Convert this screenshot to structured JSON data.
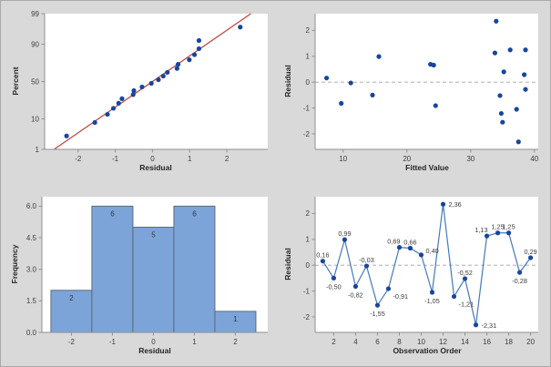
{
  "figure": {
    "background": "#d9d9d9",
    "border_color": "#a9a9a9",
    "plot_background": "#ffffff"
  },
  "colors": {
    "marker": "#17469e",
    "connect_line": "#4379bd",
    "fit_line": "#c0433c",
    "bar_fill": "#7da4d9",
    "bar_border": "#5a6b7e",
    "axis": "#8f8f8f",
    "tick_label": "#3d3d3d",
    "axis_title": "#262626",
    "zero_line": "#a3a3a3",
    "data_label": "#3a3a3a"
  },
  "chart_data": [
    {
      "name": "normal-probability-plot",
      "type": "scatter",
      "y_scale": "normal_percent",
      "xlabel": "Residual",
      "ylabel": "Percent",
      "xlim": [
        -2.9,
        3.1
      ],
      "xticks": {
        "values": [
          -2,
          -1,
          0,
          1,
          2
        ],
        "labels": [
          "-2",
          "-1",
          "0",
          "1",
          "2"
        ]
      },
      "yticks": {
        "values": [
          1,
          10,
          50,
          90,
          99
        ],
        "labels": [
          "1",
          "10",
          "50",
          "90",
          "99"
        ]
      },
      "fit_line": {
        "mean": 0,
        "sd": 1.137
      },
      "points": [
        {
          "x": -2.31,
          "percent": 3.1
        },
        {
          "x": -1.55,
          "percent": 8.0
        },
        {
          "x": -1.21,
          "percent": 13.0
        },
        {
          "x": -1.05,
          "percent": 17.9
        },
        {
          "x": -0.91,
          "percent": 22.8
        },
        {
          "x": -0.82,
          "percent": 27.8
        },
        {
          "x": -0.52,
          "percent": 32.7
        },
        {
          "x": -0.5,
          "percent": 37.7
        },
        {
          "x": -0.28,
          "percent": 42.6
        },
        {
          "x": -0.03,
          "percent": 47.5
        },
        {
          "x": 0.16,
          "percent": 52.5
        },
        {
          "x": 0.29,
          "percent": 57.4
        },
        {
          "x": 0.4,
          "percent": 62.3
        },
        {
          "x": 0.66,
          "percent": 67.3
        },
        {
          "x": 0.69,
          "percent": 72.2
        },
        {
          "x": 0.99,
          "percent": 77.2
        },
        {
          "x": 1.13,
          "percent": 82.1
        },
        {
          "x": 1.25,
          "percent": 87.0
        },
        {
          "x": 1.25,
          "percent": 92.0
        },
        {
          "x": 2.36,
          "percent": 96.9
        }
      ]
    },
    {
      "name": "residuals-vs-fitted-value",
      "type": "scatter",
      "xlabel": "Fitted Value",
      "ylabel": "Residual",
      "xlim": [
        5.6,
        40.6
      ],
      "ylim": [
        -2.6,
        2.65
      ],
      "xticks": {
        "values": [
          10,
          20,
          30,
          40
        ],
        "labels": [
          "10",
          "20",
          "30",
          "40"
        ]
      },
      "yticks": {
        "values": [
          -2,
          -1,
          0,
          1,
          2
        ],
        "labels": [
          "-2",
          "-1",
          "0",
          "1",
          "2"
        ]
      },
      "zero_line": true,
      "points": [
        {
          "x": 7.4,
          "y": 0.16
        },
        {
          "x": 9.7,
          "y": -0.82
        },
        {
          "x": 11.2,
          "y": -0.03
        },
        {
          "x": 14.6,
          "y": -0.5
        },
        {
          "x": 15.6,
          "y": 0.99
        },
        {
          "x": 23.7,
          "y": 0.69
        },
        {
          "x": 24.2,
          "y": 0.66
        },
        {
          "x": 24.5,
          "y": -0.91
        },
        {
          "x": 34.0,
          "y": 2.36
        },
        {
          "x": 33.8,
          "y": 1.13
        },
        {
          "x": 36.2,
          "y": 1.25
        },
        {
          "x": 38.6,
          "y": 1.25
        },
        {
          "x": 35.2,
          "y": 0.4
        },
        {
          "x": 38.4,
          "y": 0.29
        },
        {
          "x": 38.6,
          "y": -0.28
        },
        {
          "x": 34.6,
          "y": -0.52
        },
        {
          "x": 37.2,
          "y": -1.05
        },
        {
          "x": 34.8,
          "y": -1.21
        },
        {
          "x": 35.0,
          "y": -1.55
        },
        {
          "x": 37.5,
          "y": -2.31
        }
      ]
    },
    {
      "name": "histogram-of-residuals",
      "type": "histogram",
      "xlabel": "Residual",
      "ylabel": "Frequency",
      "xlim": [
        -2.72,
        2.79
      ],
      "ylim": [
        0,
        6.45
      ],
      "xticks": {
        "values": [
          -2,
          -1,
          0,
          1,
          2
        ],
        "labels": [
          "-2",
          "-1",
          "0",
          "1",
          "2"
        ]
      },
      "yticks": {
        "values": [
          0,
          1.5,
          3,
          4.5,
          6
        ],
        "labels": [
          "0.0",
          "1.5",
          "3.0",
          "4.5",
          "6.0"
        ]
      },
      "bin_width": 1,
      "bins": [
        {
          "center": -2,
          "count": 2,
          "label": "2"
        },
        {
          "center": -1,
          "count": 6,
          "label": "6"
        },
        {
          "center": 0,
          "count": 5,
          "label": "5"
        },
        {
          "center": 1,
          "count": 6,
          "label": "6"
        },
        {
          "center": 2,
          "count": 1,
          "label": "1"
        }
      ]
    },
    {
      "name": "residuals-vs-observation-order",
      "type": "line",
      "xlabel": "Observation Order",
      "ylabel": "Residual",
      "xlim": [
        0.3,
        20.7
      ],
      "ylim": [
        -2.6,
        2.65
      ],
      "xticks": {
        "values": [
          2,
          4,
          6,
          8,
          10,
          12,
          14,
          16,
          18,
          20
        ],
        "labels": [
          "2",
          "4",
          "6",
          "8",
          "10",
          "12",
          "14",
          "16",
          "18",
          "20"
        ]
      },
      "yticks": {
        "values": [
          -2,
          -1,
          0,
          1,
          2
        ],
        "labels": [
          "-2",
          "-1",
          "0",
          "1",
          "2"
        ]
      },
      "zero_line": true,
      "points": [
        {
          "x": 1,
          "y": 0.16,
          "label": "0,16",
          "side": "above"
        },
        {
          "x": 2,
          "y": -0.5,
          "label": "-0,50",
          "side": "below"
        },
        {
          "x": 3,
          "y": 0.99,
          "label": "0,99",
          "side": "above"
        },
        {
          "x": 4,
          "y": -0.82,
          "label": "-0,82",
          "side": "below"
        },
        {
          "x": 5,
          "y": -0.03,
          "label": "-0,03",
          "side": "above"
        },
        {
          "x": 6,
          "y": -1.55,
          "label": "-1,55",
          "side": "below"
        },
        {
          "x": 7,
          "y": -0.91,
          "label": "-0,91",
          "side": "below-right"
        },
        {
          "x": 8,
          "y": 0.69,
          "label": "0,69",
          "side": "above-left"
        },
        {
          "x": 9,
          "y": 0.66,
          "label": "0,66",
          "side": "above"
        },
        {
          "x": 10,
          "y": 0.4,
          "label": "0,40",
          "side": "right-above"
        },
        {
          "x": 11,
          "y": -1.05,
          "label": "-1,05",
          "side": "below"
        },
        {
          "x": 12,
          "y": 2.36,
          "label": "2,36",
          "side": "right"
        },
        {
          "x": 13,
          "y": -1.21,
          "label": "-1,21",
          "side": "below-right"
        },
        {
          "x": 14,
          "y": -0.52,
          "label": "-0,52",
          "side": "above"
        },
        {
          "x": 15,
          "y": -2.31,
          "label": "-2,31",
          "side": "right"
        },
        {
          "x": 16,
          "y": 1.13,
          "label": "1,13",
          "side": "above-left"
        },
        {
          "x": 17,
          "y": 1.25,
          "label": "1,25",
          "side": "above"
        },
        {
          "x": 18,
          "y": 1.25,
          "label": "1,25",
          "side": "above"
        },
        {
          "x": 19,
          "y": -0.28,
          "label": "-0,28",
          "side": "below"
        },
        {
          "x": 20,
          "y": 0.29,
          "label": "0,29",
          "side": "above"
        }
      ]
    }
  ]
}
